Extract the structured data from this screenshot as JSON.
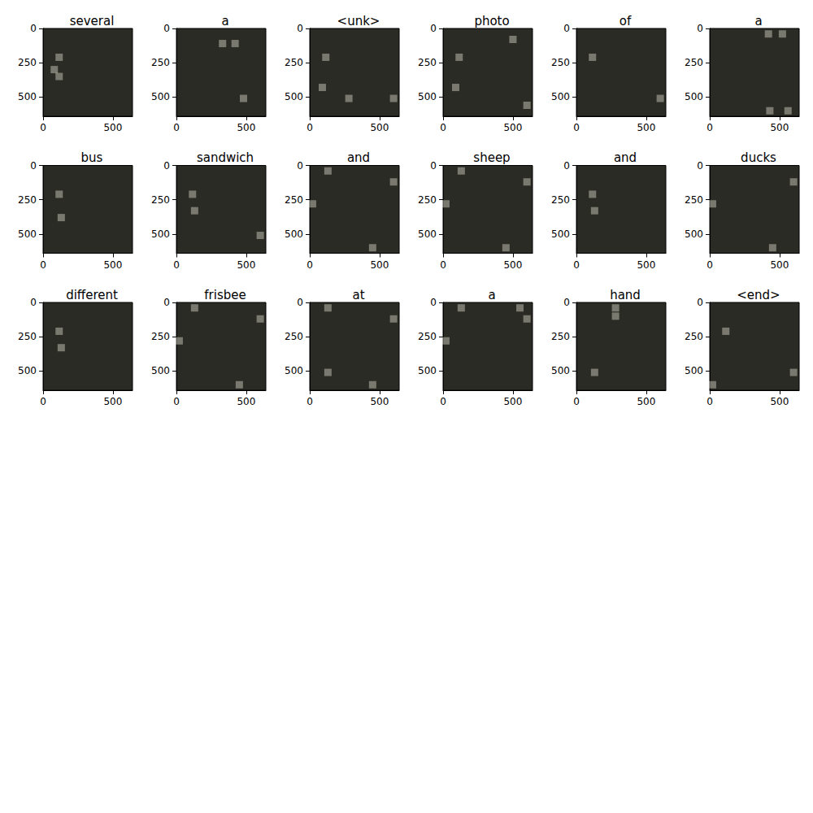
{
  "chart_data": [
    {
      "type": "scatter",
      "title": "several",
      "xlim": [
        0,
        640
      ],
      "ylim": [
        640,
        0
      ],
      "xticks": [
        0,
        500
      ],
      "yticks": [
        0,
        250,
        500
      ],
      "attention_cells": [
        [
          115,
          210
        ],
        [
          80,
          300
        ],
        [
          115,
          350
        ]
      ]
    },
    {
      "type": "scatter",
      "title": "a",
      "xlim": [
        0,
        640
      ],
      "ylim": [
        640,
        0
      ],
      "xticks": [
        0,
        500
      ],
      "yticks": [
        0,
        250,
        500
      ],
      "attention_cells": [
        [
          330,
          110
        ],
        [
          420,
          110
        ],
        [
          480,
          510
        ]
      ]
    },
    {
      "type": "scatter",
      "title": "<unk>",
      "xlim": [
        0,
        640
      ],
      "ylim": [
        640,
        0
      ],
      "xticks": [
        0,
        500
      ],
      "yticks": [
        0,
        250,
        500
      ],
      "attention_cells": [
        [
          115,
          210
        ],
        [
          90,
          430
        ],
        [
          280,
          510
        ],
        [
          600,
          510
        ]
      ]
    },
    {
      "type": "scatter",
      "title": "photo",
      "xlim": [
        0,
        640
      ],
      "ylim": [
        640,
        0
      ],
      "xticks": [
        0,
        500
      ],
      "yticks": [
        0,
        250,
        500
      ],
      "attention_cells": [
        [
          500,
          80
        ],
        [
          115,
          210
        ],
        [
          90,
          430
        ],
        [
          600,
          560
        ]
      ]
    },
    {
      "type": "scatter",
      "title": "of",
      "xlim": [
        0,
        640
      ],
      "ylim": [
        640,
        0
      ],
      "xticks": [
        0,
        500
      ],
      "yticks": [
        0,
        250,
        500
      ],
      "attention_cells": [
        [
          115,
          210
        ],
        [
          600,
          510
        ]
      ]
    },
    {
      "type": "scatter",
      "title": "a",
      "xlim": [
        0,
        640
      ],
      "ylim": [
        640,
        0
      ],
      "xticks": [
        0,
        500
      ],
      "yticks": [
        0,
        250,
        500
      ],
      "attention_cells": [
        [
          420,
          40
        ],
        [
          520,
          40
        ],
        [
          430,
          600
        ],
        [
          560,
          600
        ]
      ]
    },
    {
      "type": "scatter",
      "title": "bus",
      "xlim": [
        0,
        640
      ],
      "ylim": [
        640,
        0
      ],
      "xticks": [
        0,
        500
      ],
      "yticks": [
        0,
        250,
        500
      ],
      "attention_cells": [
        [
          115,
          210
        ],
        [
          130,
          380
        ]
      ]
    },
    {
      "type": "scatter",
      "title": "sandwich",
      "xlim": [
        0,
        640
      ],
      "ylim": [
        640,
        0
      ],
      "xticks": [
        0,
        500
      ],
      "yticks": [
        0,
        250,
        500
      ],
      "attention_cells": [
        [
          115,
          210
        ],
        [
          130,
          330
        ],
        [
          600,
          510
        ]
      ]
    },
    {
      "type": "scatter",
      "title": "and",
      "xlim": [
        0,
        640
      ],
      "ylim": [
        640,
        0
      ],
      "xticks": [
        0,
        500
      ],
      "yticks": [
        0,
        250,
        500
      ],
      "attention_cells": [
        [
          130,
          40
        ],
        [
          600,
          120
        ],
        [
          20,
          280
        ],
        [
          450,
          600
        ]
      ]
    },
    {
      "type": "scatter",
      "title": "sheep",
      "xlim": [
        0,
        640
      ],
      "ylim": [
        640,
        0
      ],
      "xticks": [
        0,
        500
      ],
      "yticks": [
        0,
        250,
        500
      ],
      "attention_cells": [
        [
          130,
          40
        ],
        [
          600,
          120
        ],
        [
          20,
          280
        ],
        [
          450,
          600
        ]
      ]
    },
    {
      "type": "scatter",
      "title": "and",
      "xlim": [
        0,
        640
      ],
      "ylim": [
        640,
        0
      ],
      "xticks": [
        0,
        500
      ],
      "yticks": [
        0,
        250,
        500
      ],
      "attention_cells": [
        [
          115,
          210
        ],
        [
          130,
          330
        ]
      ]
    },
    {
      "type": "scatter",
      "title": "ducks",
      "xlim": [
        0,
        640
      ],
      "ylim": [
        640,
        0
      ],
      "xticks": [
        0,
        500
      ],
      "yticks": [
        0,
        250,
        500
      ],
      "attention_cells": [
        [
          600,
          120
        ],
        [
          20,
          280
        ],
        [
          450,
          600
        ]
      ]
    },
    {
      "type": "scatter",
      "title": "different",
      "xlim": [
        0,
        640
      ],
      "ylim": [
        640,
        0
      ],
      "xticks": [
        0,
        500
      ],
      "yticks": [
        0,
        250,
        500
      ],
      "attention_cells": [
        [
          115,
          210
        ],
        [
          130,
          330
        ]
      ]
    },
    {
      "type": "scatter",
      "title": "frisbee",
      "xlim": [
        0,
        640
      ],
      "ylim": [
        640,
        0
      ],
      "xticks": [
        0,
        500
      ],
      "yticks": [
        0,
        250,
        500
      ],
      "attention_cells": [
        [
          130,
          40
        ],
        [
          600,
          120
        ],
        [
          20,
          280
        ],
        [
          450,
          600
        ]
      ]
    },
    {
      "type": "scatter",
      "title": "at",
      "xlim": [
        0,
        640
      ],
      "ylim": [
        640,
        0
      ],
      "xticks": [
        0,
        500
      ],
      "yticks": [
        0,
        250,
        500
      ],
      "attention_cells": [
        [
          130,
          40
        ],
        [
          600,
          120
        ],
        [
          130,
          510
        ],
        [
          450,
          600
        ]
      ]
    },
    {
      "type": "scatter",
      "title": "a",
      "xlim": [
        0,
        640
      ],
      "ylim": [
        640,
        0
      ],
      "xticks": [
        0,
        500
      ],
      "yticks": [
        0,
        250,
        500
      ],
      "attention_cells": [
        [
          130,
          40
        ],
        [
          550,
          40
        ],
        [
          600,
          120
        ],
        [
          20,
          280
        ]
      ]
    },
    {
      "type": "scatter",
      "title": "hand",
      "xlim": [
        0,
        640
      ],
      "ylim": [
        640,
        0
      ],
      "xticks": [
        0,
        500
      ],
      "yticks": [
        0,
        250,
        500
      ],
      "attention_cells": [
        [
          280,
          40
        ],
        [
          280,
          100
        ],
        [
          130,
          510
        ]
      ]
    },
    {
      "type": "scatter",
      "title": "<end>",
      "xlim": [
        0,
        640
      ],
      "ylim": [
        640,
        0
      ],
      "xticks": [
        0,
        500
      ],
      "yticks": [
        0,
        250,
        500
      ],
      "attention_cells": [
        [
          115,
          210
        ],
        [
          20,
          600
        ],
        [
          600,
          510
        ]
      ]
    }
  ]
}
